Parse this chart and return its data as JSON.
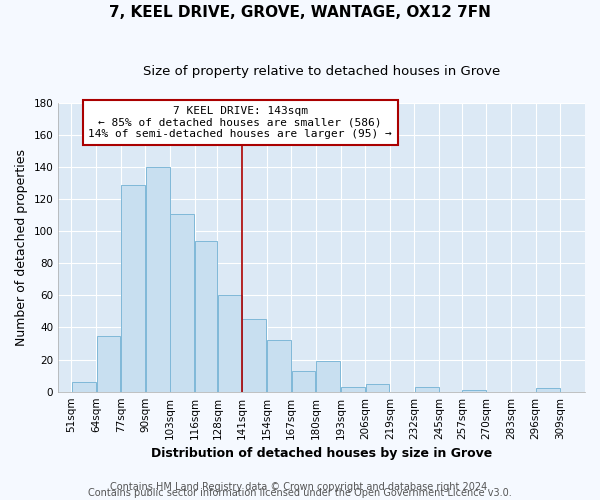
{
  "title": "7, KEEL DRIVE, GROVE, WANTAGE, OX12 7FN",
  "subtitle": "Size of property relative to detached houses in Grove",
  "xlabel": "Distribution of detached houses by size in Grove",
  "ylabel": "Number of detached properties",
  "bar_left_edges": [
    51,
    64,
    77,
    90,
    103,
    116,
    128,
    141,
    154,
    167,
    180,
    193,
    206,
    219,
    232,
    245,
    257,
    270,
    283,
    296
  ],
  "bar_widths": [
    13,
    13,
    13,
    13,
    13,
    12,
    13,
    13,
    13,
    13,
    13,
    13,
    13,
    13,
    13,
    12,
    13,
    13,
    13,
    13
  ],
  "bar_heights": [
    6,
    35,
    129,
    140,
    111,
    94,
    60,
    45,
    32,
    13,
    19,
    3,
    5,
    0,
    3,
    0,
    1,
    0,
    0,
    2
  ],
  "bar_color": "#c8dff0",
  "bar_edge_color": "#7fb8d8",
  "tick_labels": [
    "51sqm",
    "64sqm",
    "77sqm",
    "90sqm",
    "103sqm",
    "116sqm",
    "128sqm",
    "141sqm",
    "154sqm",
    "167sqm",
    "180sqm",
    "193sqm",
    "206sqm",
    "219sqm",
    "232sqm",
    "245sqm",
    "257sqm",
    "270sqm",
    "283sqm",
    "296sqm",
    "309sqm"
  ],
  "tick_positions": [
    51,
    64,
    77,
    90,
    103,
    116,
    128,
    141,
    154,
    167,
    180,
    193,
    206,
    219,
    232,
    245,
    257,
    270,
    283,
    296,
    309
  ],
  "xlim_left": 44,
  "xlim_right": 322,
  "ylim": [
    0,
    180
  ],
  "yticks": [
    0,
    20,
    40,
    60,
    80,
    100,
    120,
    140,
    160,
    180
  ],
  "vline_x": 141,
  "vline_color": "#aa0000",
  "annotation_title": "7 KEEL DRIVE: 143sqm",
  "annotation_line1": "← 85% of detached houses are smaller (586)",
  "annotation_line2": "14% of semi-detached houses are larger (95) →",
  "annotation_box_color": "#ffffff",
  "annotation_box_edge": "#aa0000",
  "footer1": "Contains HM Land Registry data © Crown copyright and database right 2024.",
  "footer2": "Contains public sector information licensed under the Open Government Licence v3.0.",
  "plot_bg_color": "#dce9f5",
  "fig_bg_color": "#f5f9ff",
  "grid_color": "#ffffff",
  "title_fontsize": 11,
  "subtitle_fontsize": 9.5,
  "axis_label_fontsize": 9,
  "tick_fontsize": 7.5,
  "footer_fontsize": 7,
  "annotation_fontsize": 8
}
